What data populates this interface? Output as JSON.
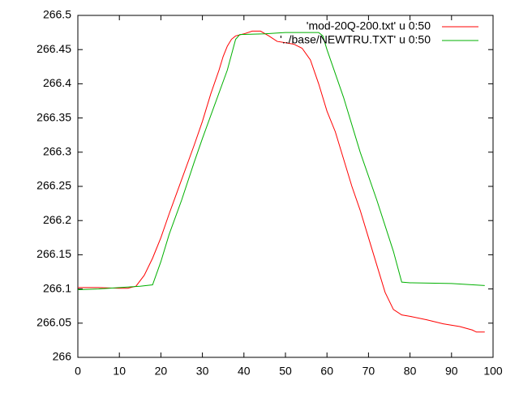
{
  "chart_data": {
    "type": "line",
    "xlim": [
      0,
      100
    ],
    "xticks": [
      0,
      10,
      20,
      30,
      40,
      50,
      60,
      70,
      80,
      90,
      100
    ],
    "ylim": [
      266,
      266.5
    ],
    "yticks": [
      266,
      266.05,
      266.1,
      266.15,
      266.2,
      266.25,
      266.3,
      266.35,
      266.4,
      266.45,
      266.5
    ],
    "legend": "top-right",
    "series": [
      {
        "name": "'mod-20Q-200.txt' u 0:50",
        "color": "#ff0000",
        "x": [
          0,
          5,
          10,
          12,
          14,
          16,
          18,
          20,
          22,
          25,
          28,
          30,
          32,
          34,
          35,
          36,
          37,
          38,
          40,
          42,
          44,
          46,
          48,
          50,
          52,
          54,
          56,
          58,
          60,
          62,
          64,
          66,
          68,
          70,
          72,
          74,
          76,
          78,
          80,
          84,
          88,
          92,
          95,
          96,
          98
        ],
        "values": [
          266.102,
          266.102,
          266.101,
          266.101,
          266.104,
          266.12,
          266.145,
          266.175,
          266.21,
          266.26,
          266.31,
          266.345,
          266.385,
          266.42,
          266.44,
          266.455,
          266.465,
          266.47,
          266.473,
          266.477,
          266.477,
          266.47,
          266.462,
          266.46,
          266.458,
          266.452,
          266.435,
          266.4,
          266.36,
          266.33,
          266.29,
          266.25,
          266.215,
          266.175,
          266.135,
          266.095,
          266.07,
          266.062,
          266.06,
          266.055,
          266.049,
          266.045,
          266.04,
          266.037,
          266.037
        ]
      },
      {
        "name": "'../base/NEWTRU.TXT' u 0:50",
        "color": "#00b000",
        "x": [
          0,
          5,
          10,
          15,
          18,
          20,
          22,
          25,
          28,
          30,
          33,
          36,
          38,
          39,
          45,
          50,
          58,
          59,
          60,
          64,
          68,
          72,
          76,
          78,
          80,
          90,
          98
        ],
        "values": [
          266.099,
          266.1,
          266.102,
          266.104,
          266.106,
          266.14,
          266.18,
          266.23,
          266.285,
          266.32,
          266.37,
          266.42,
          266.465,
          266.472,
          266.473,
          266.475,
          266.475,
          266.47,
          266.45,
          266.38,
          266.3,
          266.23,
          266.155,
          266.11,
          266.109,
          266.108,
          266.105
        ]
      }
    ]
  }
}
